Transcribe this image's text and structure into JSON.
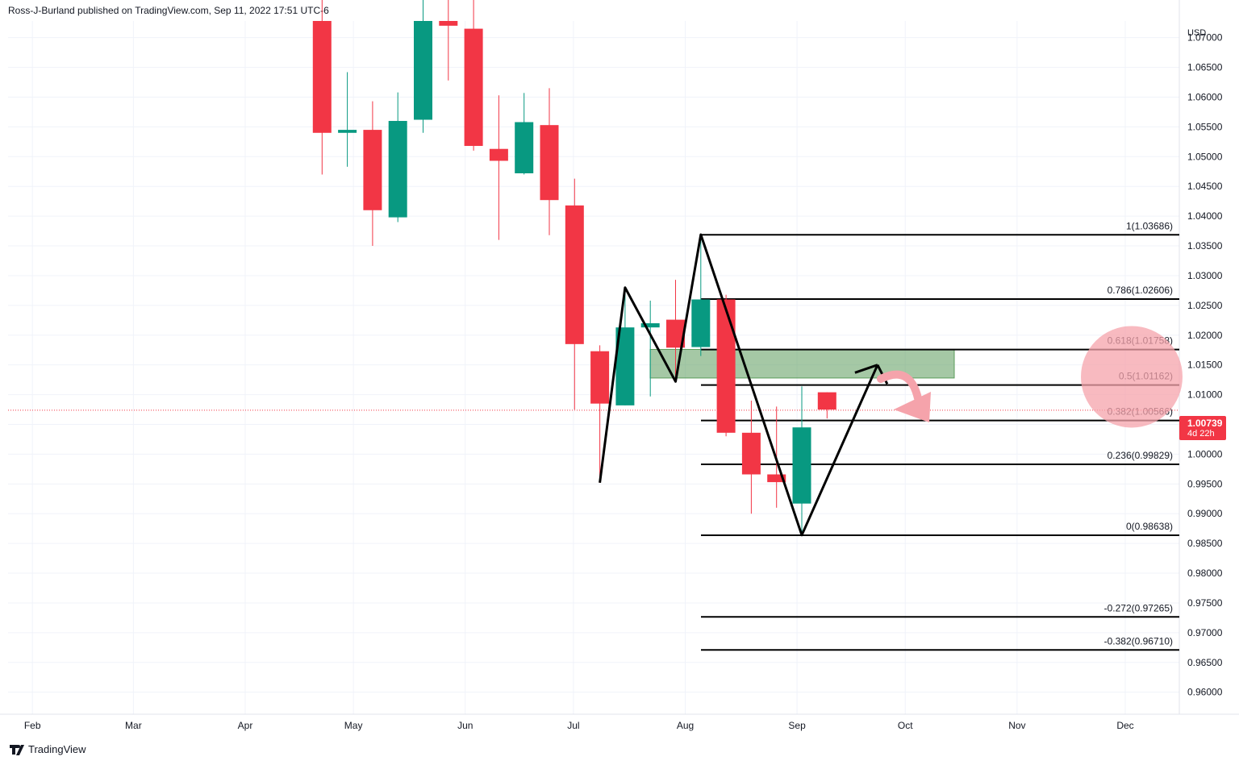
{
  "header": {
    "attribution": "Ross-J-Burland published on TradingView.com, Sep 11, 2022 17:51 UTC-6"
  },
  "footer": {
    "brand": "TradingView"
  },
  "colors": {
    "up": "#089981",
    "down": "#f23645",
    "pattern": "#000000",
    "zone": "#5b9b5b",
    "highlight": "#f5a3ab",
    "grid": "#f0f3fa",
    "text": "#131722"
  },
  "price_tag": {
    "price": "1.00739",
    "time": "4d 22h"
  },
  "chart_data": {
    "type": "candlestick",
    "currency_label": "USD",
    "x_axis": {
      "labels": [
        "Feb",
        "Mar",
        "Apr",
        "May",
        "Jun",
        "Jul",
        "Aug",
        "Sep",
        "Oct",
        "Nov",
        "Dec"
      ]
    },
    "y_axis": {
      "range": [
        0.9563,
        1.0728
      ],
      "ticks": [
        "1.07000",
        "1.06500",
        "1.06000",
        "1.05500",
        "1.05000",
        "1.04500",
        "1.04000",
        "1.03500",
        "1.03000",
        "1.02500",
        "1.02000",
        "1.01500",
        "1.01000",
        "1.00500",
        "1.00000",
        "0.99500",
        "0.99000",
        "0.98500",
        "0.98000",
        "0.97500",
        "0.97000",
        "0.96500",
        "0.96000"
      ]
    },
    "candles": [
      {
        "date": "2022-04-25",
        "open": 1.0788,
        "high": 1.0795,
        "low": 1.047,
        "close": 1.054
      },
      {
        "date": "2022-05-02",
        "open": 1.054,
        "high": 1.0642,
        "low": 1.0483,
        "close": 1.0545
      },
      {
        "date": "2022-05-09",
        "open": 1.0545,
        "high": 1.0593,
        "low": 1.035,
        "close": 1.041
      },
      {
        "date": "2022-05-16",
        "open": 1.0398,
        "high": 1.0608,
        "low": 1.039,
        "close": 1.056
      },
      {
        "date": "2022-05-23",
        "open": 1.0562,
        "high": 1.0765,
        "low": 1.054,
        "close": 1.0738
      },
      {
        "date": "2022-05-30",
        "open": 1.0738,
        "high": 1.0787,
        "low": 1.0628,
        "close": 1.072
      },
      {
        "date": "2022-06-06",
        "open": 1.0715,
        "high": 1.0765,
        "low": 1.051,
        "close": 1.0518
      },
      {
        "date": "2022-06-13",
        "open": 1.0513,
        "high": 1.0603,
        "low": 1.036,
        "close": 1.0493
      },
      {
        "date": "2022-06-20",
        "open": 1.0472,
        "high": 1.0607,
        "low": 1.047,
        "close": 1.0558
      },
      {
        "date": "2022-06-27",
        "open": 1.0553,
        "high": 1.0615,
        "low": 1.0368,
        "close": 1.0427
      },
      {
        "date": "2022-07-04",
        "open": 1.0418,
        "high": 1.0463,
        "low": 1.0075,
        "close": 1.0185
      },
      {
        "date": "2022-07-11",
        "open": 1.0173,
        "high": 1.0183,
        "low": 0.9952,
        "close": 1.0085
      },
      {
        "date": "2022-07-18",
        "open": 1.0082,
        "high": 1.0273,
        "low": 1.0082,
        "close": 1.0213
      },
      {
        "date": "2022-07-25",
        "open": 1.0213,
        "high": 1.0258,
        "low": 1.0097,
        "close": 1.022
      },
      {
        "date": "2022-08-01",
        "open": 1.0226,
        "high": 1.0293,
        "low": 1.0122,
        "close": 1.0179
      },
      {
        "date": "2022-08-08",
        "open": 1.018,
        "high": 1.0369,
        "low": 1.0165,
        "close": 1.026
      },
      {
        "date": "2022-08-15",
        "open": 1.026,
        "high": 1.0268,
        "low": 1.003,
        "close": 1.0036
      },
      {
        "date": "2022-08-22",
        "open": 1.0036,
        "high": 1.009,
        "low": 0.99,
        "close": 0.9966
      },
      {
        "date": "2022-08-29",
        "open": 0.9966,
        "high": 1.008,
        "low": 0.991,
        "close": 0.9953
      },
      {
        "date": "2022-09-05",
        "open": 0.9917,
        "high": 1.0114,
        "low": 0.9864,
        "close": 1.0045
      },
      {
        "date": "2022-09-12",
        "open": 1.0104,
        "high": 1.0104,
        "low": 1.006,
        "close": 1.0075
      }
    ],
    "fibonacci": [
      {
        "label": "1(1.03686)",
        "value": 1.03686
      },
      {
        "label": "0.786(1.02606)",
        "value": 1.02606
      },
      {
        "label": "0.618(1.01758)",
        "value": 1.01758
      },
      {
        "label": "0.5(1.01162)",
        "value": 1.01162
      },
      {
        "label": "0.382(1.00566)",
        "value": 1.00566
      },
      {
        "label": "0.236(0.99829)",
        "value": 0.99829
      },
      {
        "label": "0(0.98638)",
        "value": 0.98638
      },
      {
        "label": "-0.272(0.97265)",
        "value": 0.97265
      },
      {
        "label": "-0.382(0.96710)",
        "value": 0.9671
      }
    ],
    "last_price": 1.00739
  }
}
